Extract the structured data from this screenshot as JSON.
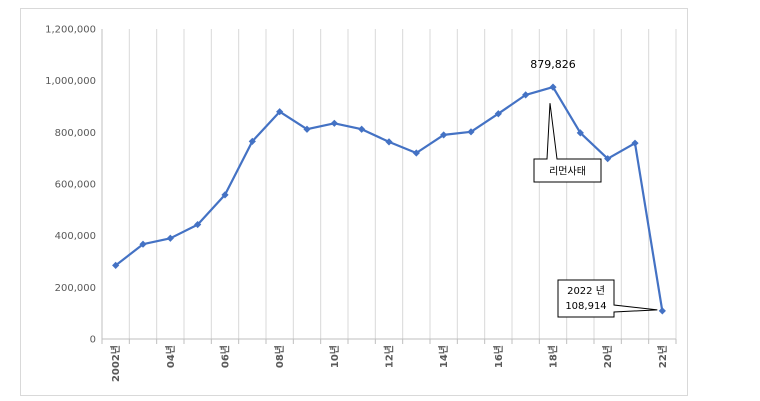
{
  "chart_data": {
    "type": "line",
    "title": "",
    "xlabel": "",
    "ylabel": "",
    "ylim": [
      0,
      1200000
    ],
    "yticks": [
      0,
      200000,
      400000,
      600000,
      800000,
      1000000,
      1200000
    ],
    "ytick_labels": [
      "0",
      "200,000",
      "400,000",
      "600,000",
      "800,000",
      "1,000,000",
      "1,200,000"
    ],
    "grid": "vertical",
    "legend": "none",
    "line_color": "#4472C4",
    "x": [
      2002,
      2003,
      2004,
      2005,
      2006,
      2007,
      2008,
      2009,
      2010,
      2011,
      2012,
      2013,
      2014,
      2015,
      2016,
      2017,
      2018,
      2019,
      2020,
      2021,
      2022
    ],
    "xtick_labels": [
      "2002년",
      "",
      "04년",
      "",
      "06년",
      "",
      "08년",
      "",
      "10년",
      "",
      "12년",
      "",
      "14년",
      "",
      "16년",
      "",
      "18년",
      "",
      "20년",
      "",
      "22년"
    ],
    "values": [
      285000,
      367000,
      390000,
      443000,
      558000,
      765000,
      879826,
      812000,
      835000,
      812000,
      763000,
      720000,
      790000,
      802000,
      872000,
      945000,
      975000,
      798000,
      698000,
      758000,
      108914
    ],
    "peak_label": "879,826",
    "annotations": [
      {
        "text": "리먼사태"
      },
      {
        "lines": [
          "2022 년",
          "108,914"
        ]
      }
    ]
  }
}
